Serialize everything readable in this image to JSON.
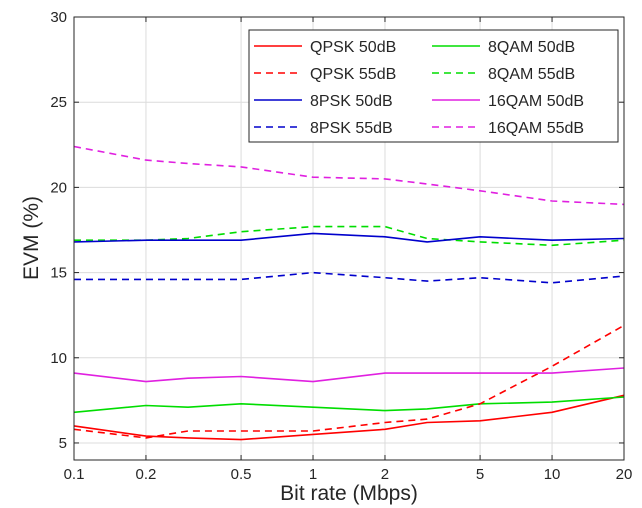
{
  "chart_data": {
    "type": "line",
    "title": "",
    "xlabel": "Bit rate (Mbps)",
    "ylabel": "EVM (%)",
    "x_scale": "log",
    "grid": true,
    "legend_position": "top-right",
    "legend_columns": 2,
    "xlim": [
      0.1,
      20
    ],
    "ylim": [
      4,
      30
    ],
    "xticks": [
      0.1,
      0.2,
      0.5,
      1,
      2,
      5,
      10,
      20
    ],
    "xtick_labels": [
      "0.1",
      "0.2",
      "0.5",
      "1",
      "2",
      "5",
      "10",
      "20"
    ],
    "yticks": [
      5,
      10,
      15,
      20,
      25,
      30
    ],
    "ytick_labels": [
      "5",
      "10",
      "15",
      "20",
      "25",
      "30"
    ],
    "x": [
      0.1,
      0.2,
      0.3,
      0.5,
      1,
      2,
      3,
      5,
      10,
      20
    ],
    "series": [
      {
        "name": "QPSK 50dB",
        "color": "#ff0000",
        "dash": "solid",
        "values": [
          6.0,
          5.4,
          5.3,
          5.2,
          5.5,
          5.8,
          6.2,
          6.3,
          6.8,
          7.8
        ]
      },
      {
        "name": "8QAM 50dB",
        "color": "#00dd00",
        "dash": "solid",
        "values": [
          6.8,
          7.2,
          7.1,
          7.3,
          7.1,
          6.9,
          7.0,
          7.3,
          7.4,
          7.7
        ]
      },
      {
        "name": "QPSK 55dB",
        "color": "#ff0000",
        "dash": "dashed",
        "values": [
          5.8,
          5.3,
          5.7,
          5.7,
          5.7,
          6.2,
          6.4,
          7.3,
          9.5,
          11.9
        ]
      },
      {
        "name": "8QAM 55dB",
        "color": "#00dd00",
        "dash": "dashed",
        "values": [
          16.9,
          16.9,
          17.0,
          17.4,
          17.7,
          17.7,
          17.0,
          16.8,
          16.6,
          16.9
        ]
      },
      {
        "name": "8PSK 50dB",
        "color": "#0000cc",
        "dash": "solid",
        "values": [
          16.8,
          16.9,
          16.9,
          16.9,
          17.3,
          17.1,
          16.8,
          17.1,
          16.9,
          17.0
        ]
      },
      {
        "name": "16QAM 50dB",
        "color": "#e020e0",
        "dash": "solid",
        "values": [
          9.1,
          8.6,
          8.8,
          8.9,
          8.6,
          9.1,
          9.1,
          9.1,
          9.1,
          9.4
        ]
      },
      {
        "name": "8PSK 55dB",
        "color": "#0000cc",
        "dash": "dashed",
        "values": [
          14.6,
          14.6,
          14.6,
          14.6,
          15.0,
          14.7,
          14.5,
          14.7,
          14.4,
          14.8
        ]
      },
      {
        "name": "16QAM 55dB",
        "color": "#e020e0",
        "dash": "dashed",
        "values": [
          22.4,
          21.6,
          21.4,
          21.2,
          20.6,
          20.5,
          20.2,
          19.8,
          19.2,
          19.0
        ]
      }
    ]
  }
}
